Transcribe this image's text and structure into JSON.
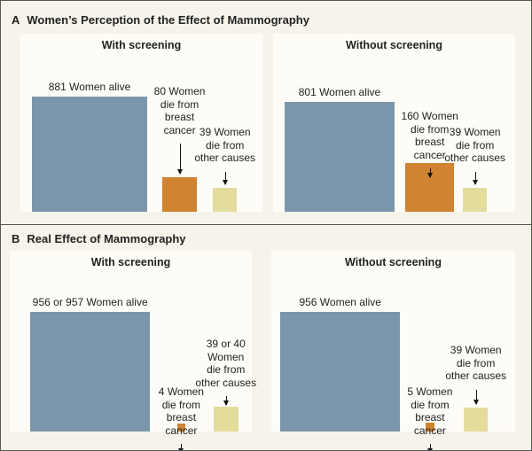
{
  "chart_data": [
    {
      "type": "bar",
      "panel_letter": "A",
      "title": "Women’s Perception of the Effect of Mammography",
      "encoding": "square area proportional to count",
      "colors": {
        "alive": "#7b96aa",
        "breast_cancer": "#d08330",
        "other_causes": "#e3dc9c"
      },
      "charts": [
        {
          "title": "With screening",
          "values": [
            881,
            80,
            39
          ],
          "labels": [
            "881 Women alive",
            "80 Women\ndie from\nbreast\ncancer",
            "39 Women\ndie from\nother causes"
          ]
        },
        {
          "title": "Without screening",
          "values": [
            801,
            160,
            39
          ],
          "labels": [
            "801 Women alive",
            "160 Women\ndie from\nbreast\ncancer",
            "39 Women\ndie from\nother causes"
          ]
        }
      ]
    },
    {
      "type": "bar",
      "panel_letter": "B",
      "title": "Real Effect of Mammography",
      "encoding": "square area proportional to count",
      "colors": {
        "alive": "#7b96aa",
        "breast_cancer": "#d08330",
        "other_causes": "#e3dc9c"
      },
      "charts": [
        {
          "title": "With screening",
          "values": [
            956.5,
            4,
            39.5
          ],
          "labels": [
            "956 or 957 Women alive",
            "4 Women\ndie from\nbreast\ncancer",
            "39 or 40\nWomen\ndie from\nother causes"
          ]
        },
        {
          "title": "Without screening",
          "values": [
            956,
            5,
            39
          ],
          "labels": [
            "956 Women alive",
            "5 Women\ndie from\nbreast\ncancer",
            "39 Women\ndie from\nother causes"
          ]
        }
      ]
    }
  ]
}
